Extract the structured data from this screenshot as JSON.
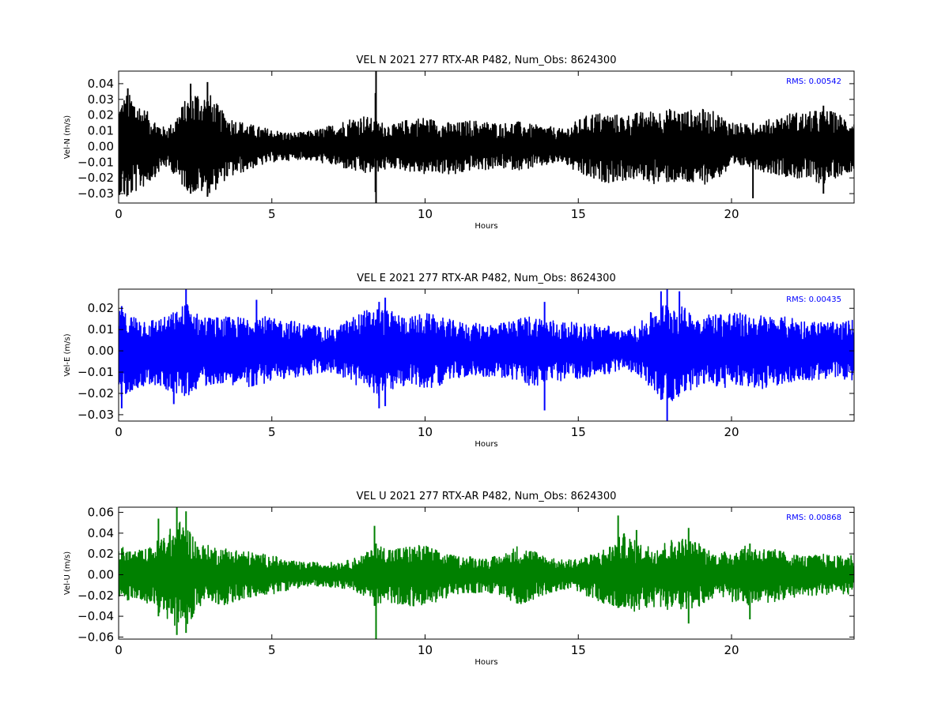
{
  "chart_data": [
    {
      "type": "line",
      "title": "VEL N 2021 277 RTX-AR  P482, Num_Obs: 8624300",
      "xlabel": "Hours",
      "ylabel": "Vel-N (m/s)",
      "xlim": [
        0,
        24
      ],
      "ylim": [
        -0.036,
        0.048
      ],
      "xticks": [
        "0",
        "5",
        "10",
        "15",
        "20"
      ],
      "yticks": [
        "−0.03",
        "−0.02",
        "−0.01",
        "0.00",
        "0.01",
        "0.02",
        "0.03",
        "0.04"
      ],
      "annotation": "RMS:  0.00542",
      "color": "#000000",
      "annotation_color": "#0000ff",
      "grid": false,
      "series": [
        {
          "envelope": [
            [
              0,
              0.027,
              -0.03
            ],
            [
              0.25,
              0.034,
              -0.035
            ],
            [
              0.5,
              0.032,
              -0.03
            ],
            [
              0.75,
              0.026,
              -0.027
            ],
            [
              1,
              0.021,
              -0.023
            ],
            [
              1.25,
              0.016,
              -0.018
            ],
            [
              1.5,
              0.012,
              -0.013
            ],
            [
              1.75,
              0.015,
              -0.016
            ],
            [
              2,
              0.024,
              -0.024
            ],
            [
              2.25,
              0.032,
              -0.028
            ],
            [
              2.5,
              0.037,
              -0.03
            ],
            [
              2.75,
              0.034,
              -0.03
            ],
            [
              3,
              0.033,
              -0.031
            ],
            [
              3.25,
              0.026,
              -0.026
            ],
            [
              3.5,
              0.02,
              -0.021
            ],
            [
              4,
              0.016,
              -0.017
            ],
            [
              4.5,
              0.013,
              -0.013
            ],
            [
              5,
              0.011,
              -0.01
            ],
            [
              5.5,
              0.009,
              -0.009
            ],
            [
              6,
              0.009,
              -0.008
            ],
            [
              6.5,
              0.011,
              -0.01
            ],
            [
              7,
              0.014,
              -0.012
            ],
            [
              7.5,
              0.018,
              -0.015
            ],
            [
              8,
              0.02,
              -0.018
            ],
            [
              8.5,
              0.016,
              -0.016
            ],
            [
              9,
              0.014,
              -0.014
            ],
            [
              9.5,
              0.018,
              -0.016
            ],
            [
              10,
              0.019,
              -0.018
            ],
            [
              10.5,
              0.016,
              -0.017
            ],
            [
              11,
              0.015,
              -0.019
            ],
            [
              11.5,
              0.017,
              -0.015
            ],
            [
              12,
              0.016,
              -0.015
            ],
            [
              12.5,
              0.015,
              -0.014
            ],
            [
              13,
              0.016,
              -0.015
            ],
            [
              13.5,
              0.014,
              -0.014
            ],
            [
              14,
              0.013,
              -0.012
            ],
            [
              14.5,
              0.011,
              -0.01
            ],
            [
              15,
              0.017,
              -0.018
            ],
            [
              15.5,
              0.022,
              -0.022
            ],
            [
              16,
              0.021,
              -0.023
            ],
            [
              16.5,
              0.02,
              -0.022
            ],
            [
              17,
              0.022,
              -0.021
            ],
            [
              17.5,
              0.023,
              -0.024
            ],
            [
              18,
              0.024,
              -0.023
            ],
            [
              18.5,
              0.023,
              -0.024
            ],
            [
              19,
              0.024,
              -0.025
            ],
            [
              19.5,
              0.022,
              -0.021
            ],
            [
              20,
              0.016,
              -0.015
            ],
            [
              20.5,
              0.014,
              -0.012
            ],
            [
              21,
              0.016,
              -0.016
            ],
            [
              21.5,
              0.019,
              -0.018
            ],
            [
              22,
              0.022,
              -0.02
            ],
            [
              22.5,
              0.022,
              -0.022
            ],
            [
              23,
              0.024,
              -0.024
            ],
            [
              23.5,
              0.021,
              -0.019
            ],
            [
              24,
              0.016,
              -0.015
            ]
          ]
        }
      ],
      "spikes": [
        [
          0.3,
          0.037,
          -0.031
        ],
        [
          2.35,
          0.04,
          -0.03
        ],
        [
          2.9,
          0.041,
          -0.032
        ],
        [
          8.4,
          0.048,
          -0.036
        ],
        [
          8.38,
          0.034,
          -0.029
        ],
        [
          20.7,
          0.015,
          -0.033
        ],
        [
          23.0,
          0.026,
          -0.03
        ]
      ]
    },
    {
      "type": "line",
      "title": "VEL E 2021 277 RTX-AR  P482, Num_Obs: 8624300",
      "xlabel": "Hours",
      "ylabel": "Vel-E (m/s)",
      "xlim": [
        0,
        24
      ],
      "ylim": [
        -0.033,
        0.029
      ],
      "xticks": [
        "0",
        "5",
        "10",
        "15",
        "20"
      ],
      "yticks": [
        "−0.03",
        "−0.02",
        "−0.01",
        "0.00",
        "0.01",
        "0.02"
      ],
      "annotation": "RMS:  0.00435",
      "color": "#0000ff",
      "annotation_color": "#0000ff",
      "grid": false,
      "series": [
        {
          "envelope": [
            [
              0,
              0.019,
              -0.024
            ],
            [
              0.25,
              0.018,
              -0.02
            ],
            [
              0.5,
              0.017,
              -0.018
            ],
            [
              1,
              0.015,
              -0.016
            ],
            [
              1.5,
              0.016,
              -0.018
            ],
            [
              2,
              0.02,
              -0.021
            ],
            [
              2.25,
              0.024,
              -0.022
            ],
            [
              2.5,
              0.018,
              -0.018
            ],
            [
              3,
              0.016,
              -0.016
            ],
            [
              3.5,
              0.016,
              -0.015
            ],
            [
              4,
              0.016,
              -0.017
            ],
            [
              4.5,
              0.018,
              -0.017
            ],
            [
              5,
              0.015,
              -0.014
            ],
            [
              5.5,
              0.015,
              -0.013
            ],
            [
              6,
              0.013,
              -0.012
            ],
            [
              6.5,
              0.012,
              -0.011
            ],
            [
              7,
              0.01,
              -0.01
            ],
            [
              7.5,
              0.015,
              -0.014
            ],
            [
              8,
              0.019,
              -0.019
            ],
            [
              8.5,
              0.021,
              -0.021
            ],
            [
              9,
              0.018,
              -0.018
            ],
            [
              9.5,
              0.016,
              -0.016
            ],
            [
              10,
              0.018,
              -0.018
            ],
            [
              10.5,
              0.016,
              -0.016
            ],
            [
              11,
              0.014,
              -0.013
            ],
            [
              11.5,
              0.013,
              -0.012
            ],
            [
              12,
              0.013,
              -0.012
            ],
            [
              12.5,
              0.013,
              -0.013
            ],
            [
              13,
              0.015,
              -0.014
            ],
            [
              13.5,
              0.017,
              -0.017
            ],
            [
              14,
              0.015,
              -0.016
            ],
            [
              14.5,
              0.014,
              -0.014
            ],
            [
              15,
              0.013,
              -0.013
            ],
            [
              15.5,
              0.013,
              -0.012
            ],
            [
              16,
              0.012,
              -0.011
            ],
            [
              16.5,
              0.009,
              -0.008
            ],
            [
              17,
              0.013,
              -0.012
            ],
            [
              17.5,
              0.02,
              -0.02
            ],
            [
              18,
              0.024,
              -0.025
            ],
            [
              18.5,
              0.02,
              -0.019
            ],
            [
              19,
              0.017,
              -0.017
            ],
            [
              19.5,
              0.018,
              -0.017
            ],
            [
              20,
              0.019,
              -0.018
            ],
            [
              20.5,
              0.017,
              -0.017
            ],
            [
              21,
              0.017,
              -0.018
            ],
            [
              21.5,
              0.016,
              -0.016
            ],
            [
              22,
              0.016,
              -0.015
            ],
            [
              22.5,
              0.014,
              -0.014
            ],
            [
              23,
              0.014,
              -0.014
            ],
            [
              23.5,
              0.013,
              -0.013
            ],
            [
              24,
              0.015,
              -0.014
            ]
          ]
        }
      ],
      "spikes": [
        [
          0.1,
          0.021,
          -0.027
        ],
        [
          1.8,
          0.013,
          -0.025
        ],
        [
          2.2,
          0.029,
          -0.02
        ],
        [
          4.5,
          0.024,
          -0.016
        ],
        [
          8.5,
          0.023,
          -0.027
        ],
        [
          8.7,
          0.025,
          -0.026
        ],
        [
          13.9,
          0.023,
          -0.028
        ],
        [
          17.7,
          0.028,
          -0.023
        ],
        [
          17.9,
          0.029,
          -0.033
        ],
        [
          18.3,
          0.028,
          -0.02
        ]
      ]
    },
    {
      "type": "line",
      "title": "VEL U 2021 277 RTX-AR  P482, Num_Obs: 8624300",
      "xlabel": "Hours",
      "ylabel": "Vel-U (m/s)",
      "xlim": [
        0,
        24
      ],
      "ylim": [
        -0.062,
        0.065
      ],
      "xticks": [
        "0",
        "5",
        "10",
        "15",
        "20"
      ],
      "yticks": [
        "−0.06",
        "−0.04",
        "−0.02",
        "0.00",
        "0.02",
        "0.04",
        "0.06"
      ],
      "annotation": "RMS:  0.00868",
      "color": "#008000",
      "annotation_color": "#0000ff",
      "grid": false,
      "series": [
        {
          "envelope": [
            [
              0,
              0.028,
              -0.03
            ],
            [
              0.5,
              0.023,
              -0.022
            ],
            [
              1,
              0.026,
              -0.028
            ],
            [
              1.5,
              0.04,
              -0.042
            ],
            [
              2,
              0.052,
              -0.052
            ],
            [
              2.3,
              0.045,
              -0.046
            ],
            [
              2.6,
              0.03,
              -0.032
            ],
            [
              3,
              0.028,
              -0.028
            ],
            [
              3.5,
              0.026,
              -0.029
            ],
            [
              4,
              0.024,
              -0.025
            ],
            [
              4.5,
              0.021,
              -0.021
            ],
            [
              5,
              0.019,
              -0.019
            ],
            [
              5.5,
              0.014,
              -0.015
            ],
            [
              6,
              0.012,
              -0.012
            ],
            [
              6.5,
              0.012,
              -0.011
            ],
            [
              7,
              0.012,
              -0.012
            ],
            [
              7.5,
              0.014,
              -0.014
            ],
            [
              8,
              0.02,
              -0.02
            ],
            [
              8.5,
              0.028,
              -0.03
            ],
            [
              9,
              0.026,
              -0.028
            ],
            [
              9.5,
              0.028,
              -0.03
            ],
            [
              10,
              0.029,
              -0.032
            ],
            [
              10.5,
              0.022,
              -0.024
            ],
            [
              11,
              0.018,
              -0.02
            ],
            [
              11.5,
              0.018,
              -0.018
            ],
            [
              12,
              0.016,
              -0.017
            ],
            [
              12.5,
              0.019,
              -0.02
            ],
            [
              13,
              0.028,
              -0.03
            ],
            [
              13.5,
              0.024,
              -0.024
            ],
            [
              14,
              0.018,
              -0.018
            ],
            [
              14.5,
              0.014,
              -0.014
            ],
            [
              15,
              0.016,
              -0.016
            ],
            [
              15.5,
              0.02,
              -0.024
            ],
            [
              16,
              0.028,
              -0.03
            ],
            [
              16.5,
              0.04,
              -0.038
            ],
            [
              17,
              0.03,
              -0.034
            ],
            [
              17.5,
              0.028,
              -0.032
            ],
            [
              18,
              0.034,
              -0.034
            ],
            [
              18.5,
              0.036,
              -0.038
            ],
            [
              19,
              0.03,
              -0.03
            ],
            [
              19.5,
              0.02,
              -0.02
            ],
            [
              20,
              0.024,
              -0.026
            ],
            [
              20.5,
              0.028,
              -0.03
            ],
            [
              21,
              0.026,
              -0.028
            ],
            [
              21.5,
              0.024,
              -0.026
            ],
            [
              22,
              0.02,
              -0.022
            ],
            [
              22.5,
              0.018,
              -0.02
            ],
            [
              23,
              0.02,
              -0.02
            ],
            [
              23.5,
              0.018,
              -0.018
            ],
            [
              24,
              0.02,
              -0.02
            ]
          ]
        }
      ],
      "spikes": [
        [
          1.3,
          0.054,
          -0.04
        ],
        [
          1.9,
          0.065,
          -0.058
        ],
        [
          2.2,
          0.061,
          -0.056
        ],
        [
          8.35,
          0.047,
          -0.03
        ],
        [
          8.4,
          0.03,
          -0.062
        ],
        [
          16.3,
          0.057,
          -0.032
        ],
        [
          16.9,
          0.043,
          -0.03
        ],
        [
          18.6,
          0.045,
          -0.047
        ],
        [
          20.6,
          0.03,
          -0.043
        ]
      ]
    }
  ]
}
